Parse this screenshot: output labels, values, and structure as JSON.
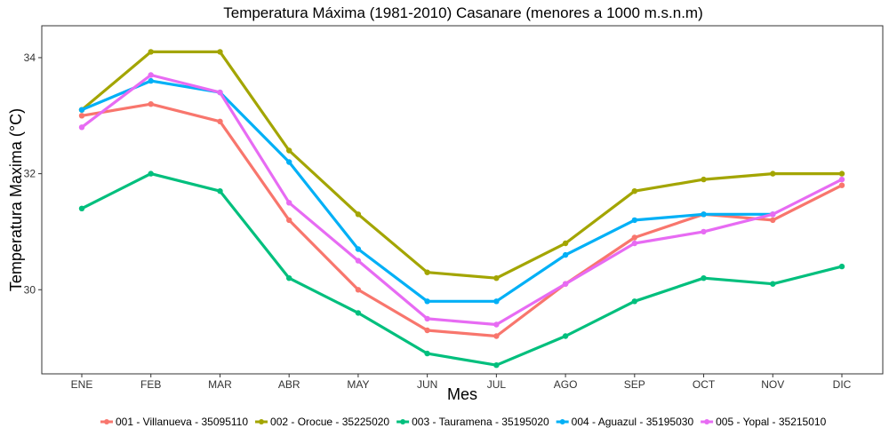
{
  "chart_data": {
    "type": "line",
    "title": "Temperatura Máxima (1981-2010) Casanare (menores a 1000 m.s.n.m)",
    "xlabel": "Mes",
    "ylabel": "Temperatura Maxima (°C)",
    "categories": [
      "ENE",
      "FEB",
      "MAR",
      "ABR",
      "MAY",
      "JUN",
      "JUL",
      "AGO",
      "SEP",
      "OCT",
      "NOV",
      "DIC"
    ],
    "yticks": [
      30,
      32,
      34
    ],
    "ylim": [
      28.55,
      34.55
    ],
    "grid": false,
    "legend_position": "bottom",
    "series": [
      {
        "name": "001 - Villanueva - 35095110",
        "color": "#F8766D",
        "values": [
          33.0,
          33.2,
          32.9,
          31.2,
          30.0,
          29.3,
          29.2,
          30.1,
          30.9,
          31.3,
          31.2,
          31.8
        ]
      },
      {
        "name": "002 - Orocue - 35225020",
        "color": "#A3A500",
        "values": [
          33.1,
          34.1,
          34.1,
          32.4,
          31.3,
          30.3,
          30.2,
          30.8,
          31.7,
          31.9,
          32.0,
          32.0
        ]
      },
      {
        "name": "003 - Tauramena - 35195020",
        "color": "#00BF7D",
        "values": [
          31.4,
          32.0,
          31.7,
          30.2,
          29.6,
          28.9,
          28.7,
          29.2,
          29.8,
          30.2,
          30.1,
          30.4
        ]
      },
      {
        "name": "004 - Aguazul - 35195030",
        "color": "#00B0F6",
        "values": [
          33.1,
          33.6,
          33.4,
          32.2,
          30.7,
          29.8,
          29.8,
          30.6,
          31.2,
          31.3,
          31.3,
          null
        ]
      },
      {
        "name": "005 - Yopal - 35215010",
        "color": "#E76BF3",
        "values": [
          32.8,
          33.7,
          33.4,
          31.5,
          30.5,
          29.5,
          29.4,
          30.1,
          30.8,
          31.0,
          31.3,
          31.9
        ]
      }
    ]
  }
}
